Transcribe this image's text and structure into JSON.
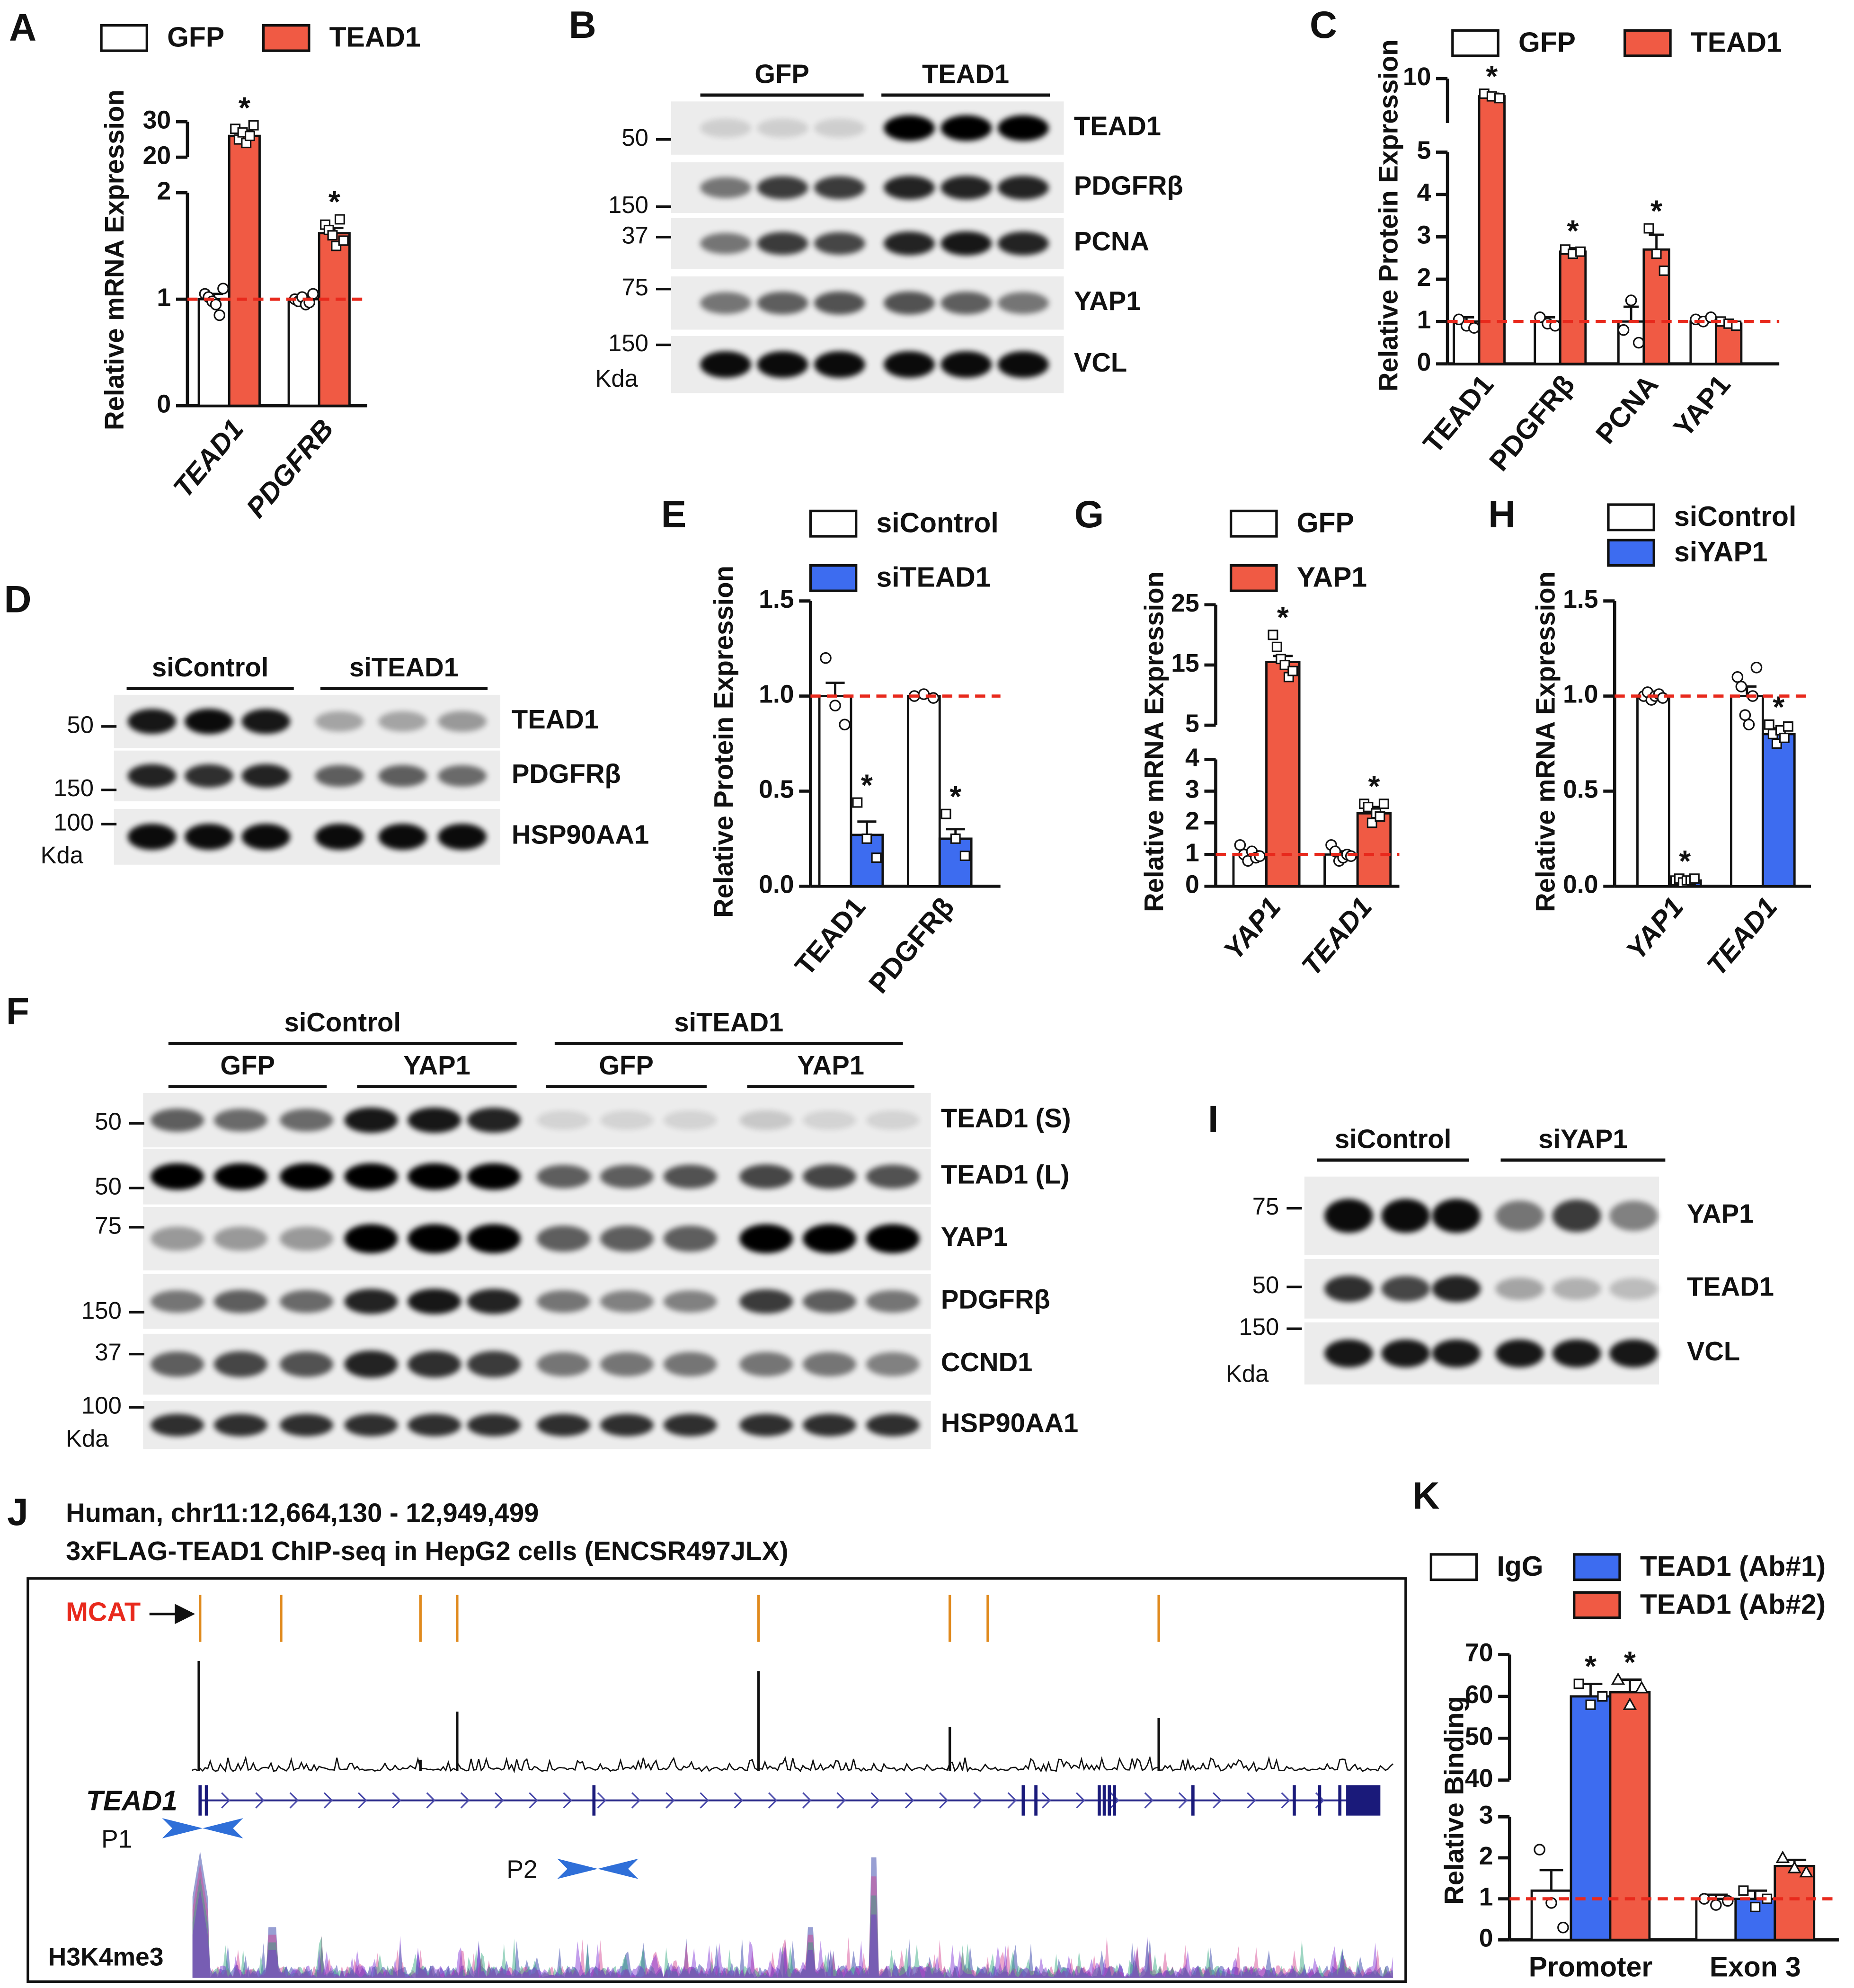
{
  "chart_data": [
    {
      "type": "bar",
      "panel": "A",
      "ylabel": "Relative mRNA Expression",
      "categories": [
        "TEAD1",
        "PDGFRB"
      ],
      "italic_categories": true,
      "rotate_categories": true,
      "axes": [
        {
          "ylim": [
            0,
            2
          ],
          "yticks": [
            0,
            1,
            2
          ]
        },
        {
          "ylim": [
            20,
            30
          ],
          "yticks": [
            20,
            30
          ]
        }
      ],
      "reference_line": 1,
      "reference_color": "#e8291c",
      "series": [
        {
          "name": "GFP",
          "color": "#ffffff",
          "marker": "circle",
          "values": [
            1,
            1
          ],
          "errors": [
            0.05,
            0.02
          ],
          "points": [
            [
              1.05,
              1.02,
              0.98,
              0.95,
              0.85,
              1.1
            ],
            [
              1.0,
              0.98,
              1.02,
              0.95,
              0.97,
              1.05
            ]
          ]
        },
        {
          "name": "TEAD1",
          "color": "#f05a44",
          "marker": "square",
          "values": [
            26,
            1.62
          ],
          "errors": [
            1.5,
            0.05
          ],
          "points": [
            [
              28,
              25,
              27,
              24,
              26,
              29
            ],
            [
              1.7,
              1.65,
              1.6,
              1.5,
              1.75,
              1.55
            ]
          ],
          "stars": [
            "*",
            "*"
          ]
        }
      ]
    },
    {
      "type": "bar",
      "panel": "C",
      "ylabel": "Relative Protein Expression",
      "categories": [
        "TEAD1",
        "PDGFRβ",
        "PCNA",
        "YAP1"
      ],
      "italic_categories": false,
      "rotate_categories": true,
      "axes": [
        {
          "ylim": [
            0,
            5
          ],
          "yticks": [
            0,
            1,
            2,
            3,
            4,
            5
          ]
        },
        {
          "ylim": [
            5,
            10
          ],
          "yticks": [
            5,
            10
          ]
        }
      ],
      "reference_line": 1,
      "reference_color": "#e8291c",
      "series": [
        {
          "name": "GFP",
          "color": "#ffffff",
          "marker": "circle",
          "values": [
            1,
            1,
            1,
            1
          ],
          "errors": [
            0.1,
            0.1,
            0.35,
            0.05
          ],
          "points": [
            [
              1.05,
              0.9,
              0.85
            ],
            [
              1.1,
              0.95,
              0.9
            ],
            [
              0.8,
              1.5,
              0.5
            ],
            [
              1.05,
              1.0,
              1.1
            ]
          ]
        },
        {
          "name": "TEAD1",
          "color": "#f05a44",
          "marker": "square",
          "values": [
            8,
            2.65,
            2.7,
            0.95
          ],
          "errors": [
            0.3,
            0.08,
            0.35,
            0.05
          ],
          "points": [
            [
              8.3,
              8.0,
              7.8
            ],
            [
              2.7,
              2.6,
              2.65
            ],
            [
              3.2,
              2.6,
              2.2
            ],
            [
              1.0,
              0.95,
              0.9
            ]
          ],
          "stars": [
            "*",
            "*",
            "*",
            null
          ]
        }
      ]
    },
    {
      "type": "bar",
      "panel": "E",
      "ylabel": "Relative Protein Expression",
      "categories": [
        "TEAD1",
        "PDGFRβ"
      ],
      "italic_categories": false,
      "rotate_categories": true,
      "axes": [
        {
          "ylim": [
            0,
            1.5
          ],
          "yticks": [
            {
              "value": 0,
              "label": "0.0"
            },
            0.5,
            {
              "value": 1,
              "label": "1.0"
            },
            1.5
          ]
        }
      ],
      "reference_line": 1,
      "reference_color": "#e8291c",
      "series": [
        {
          "name": "siControl",
          "color": "#ffffff",
          "marker": "circle",
          "values": [
            1,
            1
          ],
          "errors": [
            0.07,
            0.01
          ],
          "points": [
            [
              1.2,
              0.95,
              0.85
            ],
            [
              1.0,
              1.01,
              0.99
            ]
          ]
        },
        {
          "name": "siTEAD1",
          "color": "#3d6cf0",
          "marker": "square",
          "values": [
            0.27,
            0.25
          ],
          "errors": [
            0.07,
            0.05
          ],
          "points": [
            [
              0.44,
              0.25,
              0.15
            ],
            [
              0.38,
              0.25,
              0.16
            ]
          ],
          "stars": [
            "*",
            "*"
          ]
        }
      ]
    },
    {
      "type": "bar",
      "panel": "G",
      "ylabel": "Relative mRNA Expression",
      "categories": [
        "YAP1",
        "TEAD1"
      ],
      "italic_categories": true,
      "rotate_categories": true,
      "axes": [
        {
          "ylim": [
            0,
            4
          ],
          "yticks": [
            0,
            1,
            2,
            3,
            4
          ]
        },
        {
          "ylim": [
            5,
            25
          ],
          "yticks": [
            5,
            15,
            25
          ]
        }
      ],
      "reference_line": 1,
      "reference_color": "#e8291c",
      "series": [
        {
          "name": "GFP",
          "color": "#ffffff",
          "marker": "circle",
          "values": [
            1,
            1
          ],
          "errors": [
            0.1,
            0.1
          ],
          "points": [
            [
              1.3,
              1.0,
              0.8,
              1.1,
              0.9,
              0.95
            ],
            [
              1.3,
              1.1,
              0.8,
              0.9,
              1.0,
              0.95
            ]
          ]
        },
        {
          "name": "YAP1",
          "color": "#f05a44",
          "marker": "square",
          "values": [
            15.5,
            2.3
          ],
          "errors": [
            1,
            0.2
          ],
          "points": [
            [
              20,
              18,
              16,
              15,
              13,
              14
            ],
            [
              2.6,
              2.5,
              2.0,
              2.3,
              2.2,
              2.6
            ]
          ],
          "stars": [
            "*",
            "*"
          ]
        }
      ]
    },
    {
      "type": "bar",
      "panel": "H",
      "ylabel": "Relative mRNA Expression",
      "categories": [
        "YAP1",
        "TEAD1"
      ],
      "italic_categories": true,
      "rotate_categories": true,
      "axes": [
        {
          "ylim": [
            0,
            1.5
          ],
          "yticks": [
            {
              "value": 0,
              "label": "0.0"
            },
            0.5,
            {
              "value": 1,
              "label": "1.0"
            },
            1.5
          ]
        }
      ],
      "reference_line": 1,
      "reference_color": "#e8291c",
      "series": [
        {
          "name": "siControl",
          "color": "#ffffff",
          "marker": "circle",
          "values": [
            1,
            1
          ],
          "errors": [
            0.01,
            0.05
          ],
          "points": [
            [
              1.0,
              1.02,
              0.98,
              1.0,
              1.01,
              0.99
            ],
            [
              1.1,
              1.05,
              0.9,
              0.85,
              1.0,
              1.15
            ]
          ]
        },
        {
          "name": "siYAP1",
          "color": "#3d6cf0",
          "marker": "square",
          "values": [
            0.03,
            0.8
          ],
          "errors": [
            0.01,
            0.03
          ],
          "points": [
            [
              0.03,
              0.04,
              0.02,
              0.03,
              0.03,
              0.04
            ],
            [
              0.85,
              0.8,
              0.75,
              0.82,
              0.78,
              0.84
            ]
          ],
          "stars": [
            "*",
            "*"
          ]
        }
      ]
    },
    {
      "type": "bar",
      "panel": "K",
      "ylabel": "Relative Binding",
      "categories": [
        "Promoter",
        "Exon 3"
      ],
      "italic_categories": false,
      "rotate_categories": false,
      "axes": [
        {
          "ylim": [
            0,
            3
          ],
          "yticks": [
            0,
            1,
            2,
            3
          ]
        },
        {
          "ylim": [
            40,
            70
          ],
          "yticks": [
            40,
            50,
            60,
            70
          ]
        }
      ],
      "reference_line": 1,
      "reference_color": "#e8291c",
      "series": [
        {
          "name": "IgG",
          "color": "#ffffff",
          "marker": "circle",
          "values": [
            1.2,
            1.0
          ],
          "errors": [
            0.5,
            0.1
          ],
          "points": [
            [
              2.2,
              0.9,
              0.3
            ],
            [
              1.0,
              0.85,
              0.95
            ]
          ]
        },
        {
          "name": "TEAD1 (Ab#1)",
          "color": "#3d6cf0",
          "marker": "square",
          "values": [
            60,
            1.0
          ],
          "errors": [
            3,
            0.2
          ],
          "points": [
            [
              63,
              58,
              60
            ],
            [
              1.2,
              0.8,
              1.0
            ]
          ],
          "stars": [
            "*",
            null
          ]
        },
        {
          "name": "TEAD1 (Ab#2)",
          "color": "#f05a44",
          "marker": "triangle",
          "values": [
            61,
            1.8
          ],
          "errors": [
            3,
            0.15
          ],
          "points": [
            [
              64,
              58,
              62
            ],
            [
              2.0,
              1.75,
              1.65
            ]
          ],
          "stars": [
            "*",
            null
          ]
        }
      ]
    }
  ],
  "blots": [
    {
      "panel": "B",
      "groups": [
        "GFP",
        "TEAD1"
      ],
      "rows": [
        "TEAD1",
        "PDGFRβ",
        "PCNA",
        "YAP1",
        "VCL"
      ],
      "markers": [
        "50",
        "150",
        "37",
        "75",
        "150"
      ],
      "unit": "Kda"
    },
    {
      "panel": "D",
      "groups": [
        "siControl",
        "siTEAD1"
      ],
      "rows": [
        "TEAD1",
        "PDGFRβ",
        "HSP90AA1"
      ],
      "markers": [
        "50",
        "150",
        "100"
      ],
      "unit": "Kda"
    },
    {
      "panel": "F",
      "groups": [
        "siControl",
        "siTEAD1"
      ],
      "subgroups": [
        "GFP",
        "YAP1",
        "GFP",
        "YAP1"
      ],
      "rows": [
        "TEAD1 (S)",
        "TEAD1 (L)",
        "YAP1",
        "PDGFRβ",
        "CCND1",
        "HSP90AA1"
      ],
      "markers": [
        "50",
        "50",
        "75",
        "150",
        "37",
        "100"
      ],
      "unit": "Kda"
    },
    {
      "panel": "I",
      "groups": [
        "siControl",
        "siYAP1"
      ],
      "rows": [
        "YAP1",
        "TEAD1",
        "VCL"
      ],
      "markers": [
        "75",
        "50",
        "150"
      ],
      "unit": "Kda"
    }
  ],
  "track": {
    "panel": "J",
    "title": "Human, chr11:12,664,130 - 12,949,499",
    "subtitle": "3xFLAG-TEAD1 ChIP-seq in HepG2 cells (ENCSR497JLX)",
    "motif_label": "MCAT",
    "gene_label": "TEAD1",
    "primers": [
      "P1",
      "P2"
    ],
    "histone_label": "H3K4me3"
  }
}
